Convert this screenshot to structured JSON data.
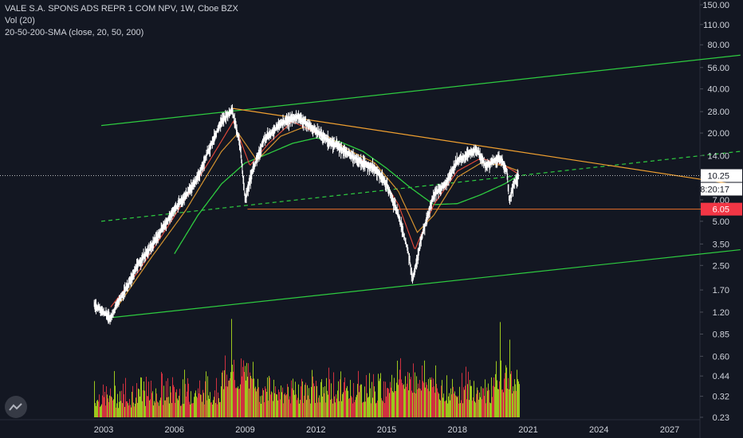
{
  "legend": {
    "symbol": "VALE S.A. SPONS ADS REPR 1 COM NPV, 1W, Cboe BZX",
    "volume": "Vol (20)",
    "sma": "20-50-200-SMA (close, 20, 50, 200)"
  },
  "colors": {
    "background": "#131722",
    "channel": "#2ecc40",
    "trendline": "#f0a030",
    "support": "#e8702a",
    "sma20": "#e84a3a",
    "sma50": "#d4922f",
    "sma200": "#2ecc40",
    "price": "#ffffff",
    "label_bg": "#ffffff",
    "support_label_bg": "#f23645",
    "volume_up": "#b5e61d",
    "volume_down": "#f23645",
    "grid": "#1e2230",
    "axis_text": "#d1d4dc"
  },
  "chart_data": {
    "type": "candlestick",
    "scale": "log",
    "x_ticks": [
      "2003",
      "2006",
      "2009",
      "2012",
      "2015",
      "2018",
      "2021",
      "2024",
      "2027"
    ],
    "y_ticks": [
      "150.00",
      "110.00",
      "80.00",
      "56.00",
      "40.00",
      "28.00",
      "20.00",
      "14.00",
      "10.00",
      "7.00",
      "5.00",
      "3.50",
      "2.50",
      "1.70",
      "1.20",
      "0.85",
      "0.60",
      "0.44",
      "0.32",
      "0.23"
    ],
    "ylim": [
      0.23,
      150
    ],
    "xlim": [
      2001.8,
      2030
    ],
    "last_price": "10.25",
    "countdown": "08:20:17",
    "support_level": "6.05",
    "price_path": [
      [
        2002.6,
        1.35
      ],
      [
        2003.0,
        1.2
      ],
      [
        2003.3,
        1.1
      ],
      [
        2003.6,
        1.4
      ],
      [
        2004.0,
        1.8
      ],
      [
        2004.5,
        2.6
      ],
      [
        2005.0,
        3.3
      ],
      [
        2005.5,
        4.5
      ],
      [
        2006.0,
        6.0
      ],
      [
        2006.5,
        7.5
      ],
      [
        2007.0,
        10.0
      ],
      [
        2007.5,
        16.0
      ],
      [
        2008.0,
        24.0
      ],
      [
        2008.45,
        29.0
      ],
      [
        2008.8,
        16.0
      ],
      [
        2009.0,
        7.0
      ],
      [
        2009.3,
        11.0
      ],
      [
        2009.8,
        18.0
      ],
      [
        2010.5,
        23.0
      ],
      [
        2011.2,
        26.0
      ],
      [
        2011.8,
        22.0
      ],
      [
        2012.3,
        19.0
      ],
      [
        2013.0,
        16.0
      ],
      [
        2013.8,
        13.0
      ],
      [
        2014.5,
        11.5
      ],
      [
        2015.0,
        9.0
      ],
      [
        2015.5,
        5.5
      ],
      [
        2015.9,
        3.2
      ],
      [
        2016.1,
        2.0
      ],
      [
        2016.5,
        4.0
      ],
      [
        2017.0,
        7.5
      ],
      [
        2017.5,
        9.0
      ],
      [
        2018.0,
        13.0
      ],
      [
        2018.8,
        15.5
      ],
      [
        2019.2,
        12.0
      ],
      [
        2019.8,
        13.5
      ],
      [
        2020.1,
        11.0
      ],
      [
        2020.2,
        6.8
      ],
      [
        2020.4,
        9.0
      ],
      [
        2020.6,
        10.25
      ]
    ],
    "sma20_path": [
      [
        2003.3,
        1.3
      ],
      [
        2004.5,
        2.3
      ],
      [
        2006.0,
        5.4
      ],
      [
        2007.5,
        13.0
      ],
      [
        2008.5,
        24.0
      ],
      [
        2009.2,
        12.0
      ],
      [
        2010.0,
        17.0
      ],
      [
        2011.0,
        24.0
      ],
      [
        2012.0,
        20.0
      ],
      [
        2013.5,
        14.0
      ],
      [
        2014.5,
        12.0
      ],
      [
        2015.5,
        6.5
      ],
      [
        2016.2,
        3.2
      ],
      [
        2017.0,
        6.5
      ],
      [
        2018.0,
        11.0
      ],
      [
        2019.0,
        13.5
      ],
      [
        2020.0,
        12.0
      ],
      [
        2020.6,
        10.5
      ]
    ],
    "sma50_path": [
      [
        2003.5,
        1.25
      ],
      [
        2005.0,
        2.8
      ],
      [
        2006.5,
        6.0
      ],
      [
        2008.0,
        15.0
      ],
      [
        2008.7,
        20.0
      ],
      [
        2009.5,
        13.0
      ],
      [
        2010.5,
        19.0
      ],
      [
        2011.5,
        22.0
      ],
      [
        2012.5,
        19.0
      ],
      [
        2013.5,
        15.0
      ],
      [
        2014.5,
        12.5
      ],
      [
        2015.5,
        8.0
      ],
      [
        2016.3,
        4.2
      ],
      [
        2017.0,
        5.5
      ],
      [
        2018.0,
        10.0
      ],
      [
        2019.0,
        12.5
      ],
      [
        2020.0,
        12.0
      ],
      [
        2020.6,
        11.0
      ]
    ],
    "sma200_path": [
      [
        2006.0,
        3.0
      ],
      [
        2007.0,
        5.5
      ],
      [
        2008.0,
        9.0
      ],
      [
        2009.0,
        12.5
      ],
      [
        2010.0,
        14.5
      ],
      [
        2011.0,
        17.0
      ],
      [
        2012.0,
        18.5
      ],
      [
        2013.0,
        17.5
      ],
      [
        2014.0,
        15.0
      ],
      [
        2015.0,
        11.5
      ],
      [
        2016.0,
        8.5
      ],
      [
        2017.0,
        6.5
      ],
      [
        2018.0,
        6.6
      ],
      [
        2019.0,
        7.6
      ],
      [
        2020.0,
        9.0
      ],
      [
        2020.6,
        10.3
      ]
    ],
    "channel_upper": [
      [
        2002.9,
        22.5
      ],
      [
        2030.0,
        68.0
      ]
    ],
    "channel_lower": [
      [
        2003.3,
        1.1
      ],
      [
        2030.0,
        3.2
      ]
    ],
    "channel_mid": [
      [
        2002.9,
        5.0
      ],
      [
        2030.0,
        15.0
      ]
    ],
    "trendline": [
      [
        2008.45,
        29.5
      ],
      [
        2030.0,
        8.8
      ]
    ],
    "support_line": [
      [
        2009.1,
        6.05
      ],
      [
        2030.0,
        6.05
      ]
    ],
    "volume_peaks": [
      [
        2008.4,
        "up",
        0.95
      ],
      [
        2008.9,
        "down",
        0.55
      ],
      [
        2016.5,
        "down",
        0.5
      ],
      [
        2019.8,
        "up",
        0.92
      ],
      [
        2020.2,
        "up",
        0.75
      ],
      [
        2002.6,
        "up",
        0.35
      ]
    ]
  }
}
